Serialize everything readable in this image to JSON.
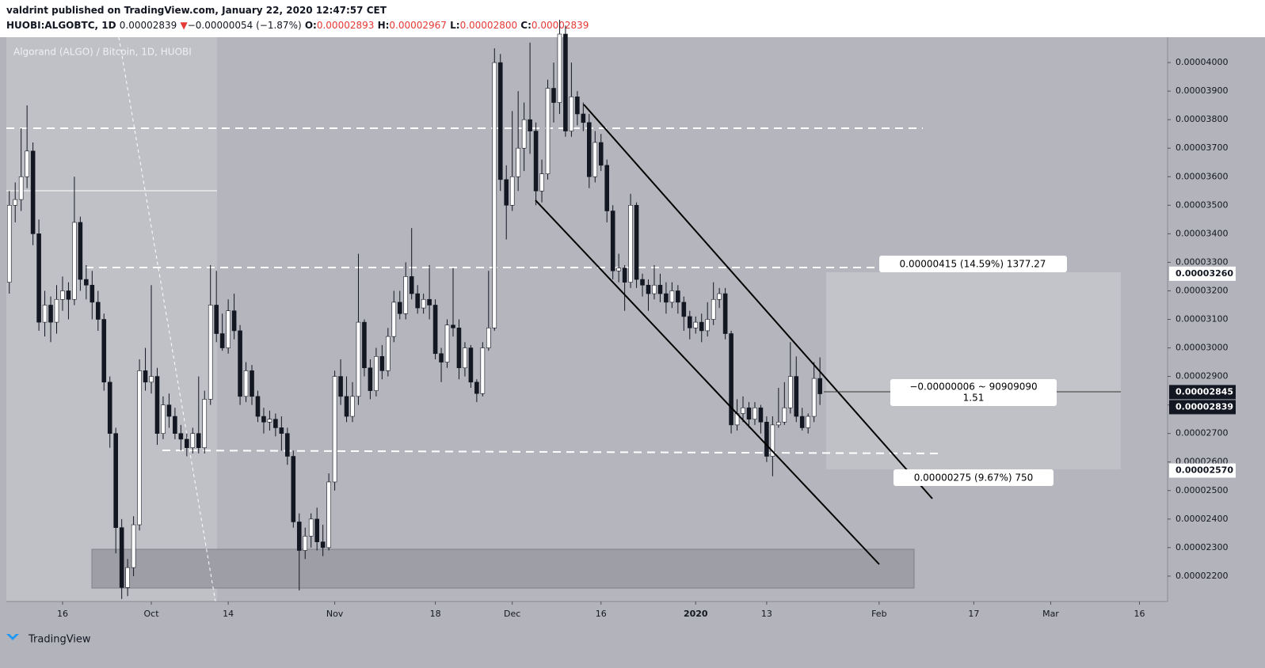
{
  "header": {
    "publisher": "valdrint published on TradingView.com, January 22, 2020 12:47:57 CET",
    "symbol": "HUOBI:ALGOBTC, 1D",
    "last": "0.00002839",
    "arrow": "▼",
    "change": "−0.00000054 (−1.87%)",
    "o_label": "O:",
    "o": "0.00002893",
    "h_label": "H:",
    "h": "0.00002967",
    "l_label": "L:",
    "l": "0.00002800",
    "c_label": "C:",
    "c": "0.00002839"
  },
  "chart_data": {
    "type": "candlestick",
    "title": "Algorand (ALGO) / Bitcoin, 1D, HUOBI",
    "up_color": "#ffffff",
    "down_color": "#131722",
    "candles": [
      [
        3.23e-05,
        3.55e-05,
        3.19e-05,
        3.5e-05
      ],
      [
        3.5e-05,
        3.58e-05,
        3.44e-05,
        3.52e-05
      ],
      [
        3.52e-05,
        3.77e-05,
        3.48e-05,
        3.6e-05
      ],
      [
        3.6e-05,
        3.85e-05,
        3.56e-05,
        3.69e-05
      ],
      [
        3.69e-05,
        3.72e-05,
        3.36e-05,
        3.4e-05
      ],
      [
        3.4e-05,
        3.45e-05,
        3.06e-05,
        3.09e-05
      ],
      [
        3.09e-05,
        3.2e-05,
        3.04e-05,
        3.15e-05
      ],
      [
        3.15e-05,
        3.18e-05,
        3.02e-05,
        3.09e-05
      ],
      [
        3.09e-05,
        3.22e-05,
        3.05e-05,
        3.17e-05
      ],
      [
        3.17e-05,
        3.25e-05,
        3.13e-05,
        3.2e-05
      ],
      [
        3.2e-05,
        3.23e-05,
        3.1e-05,
        3.17e-05
      ],
      [
        3.17e-05,
        3.6e-05,
        3.15e-05,
        3.44e-05
      ],
      [
        3.44e-05,
        3.46e-05,
        3.2e-05,
        3.24e-05
      ],
      [
        3.24e-05,
        3.29e-05,
        3.17e-05,
        3.22e-05
      ],
      [
        3.22e-05,
        3.27e-05,
        3.1e-05,
        3.16e-05
      ],
      [
        3.16e-05,
        3.2e-05,
        3.06e-05,
        3.1e-05
      ],
      [
        3.1e-05,
        3.12e-05,
        2.85e-05,
        2.88e-05
      ],
      [
        2.88e-05,
        2.9e-05,
        2.65e-05,
        2.7e-05
      ],
      [
        2.7e-05,
        2.72e-05,
        2.28e-05,
        2.37e-05
      ],
      [
        2.37e-05,
        2.4e-05,
        2.12e-05,
        2.16e-05
      ],
      [
        2.16e-05,
        2.26e-05,
        2.13e-05,
        2.23e-05
      ],
      [
        2.23e-05,
        2.41e-05,
        2.2e-05,
        2.38e-05
      ],
      [
        2.38e-05,
        2.96e-05,
        2.36e-05,
        2.92e-05
      ],
      [
        2.92e-05,
        3e-05,
        2.85e-05,
        2.88e-05
      ],
      [
        2.88e-05,
        3.22e-05,
        2.84e-05,
        2.9e-05
      ],
      [
        2.9e-05,
        2.93e-05,
        2.66e-05,
        2.7e-05
      ],
      [
        2.7e-05,
        2.83e-05,
        2.68e-05,
        2.8e-05
      ],
      [
        2.8e-05,
        2.84e-05,
        2.72e-05,
        2.76e-05
      ],
      [
        2.76e-05,
        2.79e-05,
        2.68e-05,
        2.7e-05
      ],
      [
        2.7e-05,
        2.73e-05,
        2.64e-05,
        2.68e-05
      ],
      [
        2.68e-05,
        2.7e-05,
        2.62e-05,
        2.65e-05
      ],
      [
        2.65e-05,
        2.72e-05,
        2.63e-05,
        2.7e-05
      ],
      [
        2.7e-05,
        2.9e-05,
        2.63e-05,
        2.65e-05
      ],
      [
        2.65e-05,
        2.85e-05,
        2.63e-05,
        2.82e-05
      ],
      [
        2.82e-05,
        3.29e-05,
        2.8e-05,
        3.15e-05
      ],
      [
        3.15e-05,
        3.27e-05,
        3.02e-05,
        3.05e-05
      ],
      [
        3.05e-05,
        3.12e-05,
        2.99e-05,
        3e-05
      ],
      [
        3e-05,
        3.17e-05,
        2.98e-05,
        3.13e-05
      ],
      [
        3.13e-05,
        3.19e-05,
        3.03e-05,
        3.06e-05
      ],
      [
        3.06e-05,
        3.08e-05,
        2.8e-05,
        2.83e-05
      ],
      [
        2.83e-05,
        2.95e-05,
        2.81e-05,
        2.92e-05
      ],
      [
        2.92e-05,
        2.94e-05,
        2.8e-05,
        2.83e-05
      ],
      [
        2.83e-05,
        2.85e-05,
        2.74e-05,
        2.76e-05
      ],
      [
        2.76e-05,
        2.79e-05,
        2.7e-05,
        2.74e-05
      ],
      [
        2.74e-05,
        2.78e-05,
        2.71e-05,
        2.75e-05
      ],
      [
        2.75e-05,
        2.77e-05,
        2.69e-05,
        2.72e-05
      ],
      [
        2.72e-05,
        2.76e-05,
        2.64e-05,
        2.7e-05
      ],
      [
        2.7e-05,
        2.72e-05,
        2.59e-05,
        2.62e-05
      ],
      [
        2.62e-05,
        2.64e-05,
        2.37e-05,
        2.39e-05
      ],
      [
        2.39e-05,
        2.42e-05,
        2.15e-05,
        2.29e-05
      ],
      [
        2.29e-05,
        2.37e-05,
        2.26e-05,
        2.34e-05
      ],
      [
        2.34e-05,
        2.42e-05,
        2.3e-05,
        2.4e-05
      ],
      [
        2.4e-05,
        2.44e-05,
        2.29e-05,
        2.32e-05
      ],
      [
        2.32e-05,
        2.38e-05,
        2.27e-05,
        2.3e-05
      ],
      [
        2.3e-05,
        2.56e-05,
        2.29e-05,
        2.53e-05
      ],
      [
        2.53e-05,
        2.92e-05,
        2.5e-05,
        2.9e-05
      ],
      [
        2.9e-05,
        2.96e-05,
        2.8e-05,
        2.83e-05
      ],
      [
        2.83e-05,
        2.9e-05,
        2.74e-05,
        2.76e-05
      ],
      [
        2.76e-05,
        2.88e-05,
        2.74e-05,
        2.83e-05
      ],
      [
        2.83e-05,
        3.33e-05,
        2.8e-05,
        3.09e-05
      ],
      [
        3.09e-05,
        3.1e-05,
        2.9e-05,
        2.93e-05
      ],
      [
        2.93e-05,
        2.96e-05,
        2.82e-05,
        2.85e-05
      ],
      [
        2.85e-05,
        3e-05,
        2.83e-05,
        2.97e-05
      ],
      [
        2.97e-05,
        3.01e-05,
        2.89e-05,
        2.92e-05
      ],
      [
        2.92e-05,
        3.07e-05,
        2.9e-05,
        3.04e-05
      ],
      [
        3.04e-05,
        3.2e-05,
        3.02e-05,
        3.16e-05
      ],
      [
        3.16e-05,
        3.2e-05,
        3.1e-05,
        3.12e-05
      ],
      [
        3.12e-05,
        3.3e-05,
        3.1e-05,
        3.25e-05
      ],
      [
        3.25e-05,
        3.42e-05,
        3.17e-05,
        3.19e-05
      ],
      [
        3.19e-05,
        3.22e-05,
        3.12e-05,
        3.14e-05
      ],
      [
        3.14e-05,
        3.19e-05,
        3.12e-05,
        3.17e-05
      ],
      [
        3.17e-05,
        3.29e-05,
        3.1e-05,
        3.15e-05
      ],
      [
        3.15e-05,
        3.17e-05,
        2.96e-05,
        2.98e-05
      ],
      [
        2.98e-05,
        3e-05,
        2.88e-05,
        2.95e-05
      ],
      [
        2.95e-05,
        3.1e-05,
        2.93e-05,
        3.08e-05
      ],
      [
        3.08e-05,
        3.28e-05,
        3.04e-05,
        3.07e-05
      ],
      [
        3.07e-05,
        3.1e-05,
        2.89e-05,
        2.93e-05
      ],
      [
        2.93e-05,
        3.02e-05,
        2.9e-05,
        3e-05
      ],
      [
        3e-05,
        3.01e-05,
        2.86e-05,
        2.88e-05
      ],
      [
        2.88e-05,
        2.89e-05,
        2.81e-05,
        2.84e-05
      ],
      [
        2.84e-05,
        3.02e-05,
        2.83e-05,
        3e-05
      ],
      [
        3e-05,
        3.27e-05,
        2.99e-05,
        3.07e-05
      ],
      [
        3.07e-05,
        4.05e-05,
        3.06e-05,
        4e-05
      ],
      [
        4e-05,
        4.03e-05,
        3.55e-05,
        3.59e-05
      ],
      [
        3.59e-05,
        3.64e-05,
        3.38e-05,
        3.5e-05
      ],
      [
        3.5e-05,
        3.83e-05,
        3.48e-05,
        3.6e-05
      ],
      [
        3.6e-05,
        3.9e-05,
        3.55e-05,
        3.7e-05
      ],
      [
        3.7e-05,
        3.86e-05,
        3.62e-05,
        3.8e-05
      ],
      [
        3.8e-05,
        4.07e-05,
        3.68e-05,
        3.76e-05
      ],
      [
        3.76e-05,
        3.79e-05,
        3.5e-05,
        3.55e-05
      ],
      [
        3.55e-05,
        3.66e-05,
        3.51e-05,
        3.61e-05
      ],
      [
        3.61e-05,
        3.94e-05,
        3.59e-05,
        3.91e-05
      ],
      [
        3.91e-05,
        4e-05,
        3.79e-05,
        3.86e-05
      ],
      [
        3.86e-05,
        4.15e-05,
        3.82e-05,
        4.1e-05
      ],
      [
        4.1e-05,
        4.13e-05,
        3.74e-05,
        3.76e-05
      ],
      [
        3.76e-05,
        4e-05,
        3.74e-05,
        3.88e-05
      ],
      [
        3.88e-05,
        3.9e-05,
        3.78e-05,
        3.82e-05
      ],
      [
        3.82e-05,
        3.86e-05,
        3.76e-05,
        3.79e-05
      ],
      [
        3.79e-05,
        3.82e-05,
        3.56e-05,
        3.6e-05
      ],
      [
        3.6e-05,
        3.76e-05,
        3.58e-05,
        3.72e-05
      ],
      [
        3.72e-05,
        3.75e-05,
        3.62e-05,
        3.64e-05
      ],
      [
        3.64e-05,
        3.66e-05,
        3.44e-05,
        3.48e-05
      ],
      [
        3.48e-05,
        3.5e-05,
        3.24e-05,
        3.27e-05
      ],
      [
        3.27e-05,
        3.33e-05,
        3.23e-05,
        3.28e-05
      ],
      [
        3.28e-05,
        3.29e-05,
        3.13e-05,
        3.23e-05
      ],
      [
        3.23e-05,
        3.54e-05,
        3.21e-05,
        3.5e-05
      ],
      [
        3.5e-05,
        3.51e-05,
        3.21e-05,
        3.24e-05
      ],
      [
        3.24e-05,
        3.26e-05,
        3.18e-05,
        3.22e-05
      ],
      [
        3.22e-05,
        3.24e-05,
        3.13e-05,
        3.19e-05
      ],
      [
        3.19e-05,
        3.29e-05,
        3.17e-05,
        3.22e-05
      ],
      [
        3.22e-05,
        3.26e-05,
        3.16e-05,
        3.19e-05
      ],
      [
        3.19e-05,
        3.23e-05,
        3.12e-05,
        3.16e-05
      ],
      [
        3.16e-05,
        3.23e-05,
        3.14e-05,
        3.2e-05
      ],
      [
        3.2e-05,
        3.22e-05,
        3.12e-05,
        3.16e-05
      ],
      [
        3.16e-05,
        3.18e-05,
        3.06e-05,
        3.11e-05
      ],
      [
        3.11e-05,
        3.13e-05,
        3.03e-05,
        3.07e-05
      ],
      [
        3.07e-05,
        3.11e-05,
        3.05e-05,
        3.09e-05
      ],
      [
        3.09e-05,
        3.12e-05,
        3.02e-05,
        3.06e-05
      ],
      [
        3.06e-05,
        3.16e-05,
        3.04e-05,
        3.1e-05
      ],
      [
        3.1e-05,
        3.23e-05,
        3.08e-05,
        3.17e-05
      ],
      [
        3.17e-05,
        3.21e-05,
        3.14e-05,
        3.19e-05
      ],
      [
        3.19e-05,
        3.21e-05,
        3.03e-05,
        3.05e-05
      ],
      [
        3.05e-05,
        3.06e-05,
        2.7e-05,
        2.73e-05
      ],
      [
        2.73e-05,
        2.82e-05,
        2.71e-05,
        2.77e-05
      ],
      [
        2.77e-05,
        2.83e-05,
        2.74e-05,
        2.79e-05
      ],
      [
        2.79e-05,
        2.81e-05,
        2.72e-05,
        2.75e-05
      ],
      [
        2.75e-05,
        2.81e-05,
        2.73e-05,
        2.79e-05
      ],
      [
        2.79e-05,
        2.8e-05,
        2.7e-05,
        2.74e-05
      ],
      [
        2.74e-05,
        2.76e-05,
        2.6e-05,
        2.62e-05
      ],
      [
        2.62e-05,
        2.76e-05,
        2.55e-05,
        2.73e-05
      ],
      [
        2.73e-05,
        2.86e-05,
        2.72e-05,
        2.74e-05
      ],
      [
        2.74e-05,
        2.88e-05,
        2.73e-05,
        2.79e-05
      ],
      [
        2.79e-05,
        3.02e-05,
        2.77e-05,
        2.9e-05
      ],
      [
        2.9e-05,
        2.97e-05,
        2.74e-05,
        2.76e-05
      ],
      [
        2.76e-05,
        2.79e-05,
        2.71e-05,
        2.72e-05
      ],
      [
        2.72e-05,
        2.77e-05,
        2.7e-05,
        2.76e-05
      ],
      [
        2.76e-05,
        2.95e-05,
        2.74e-05,
        2.893e-05
      ],
      [
        2.893e-05,
        2.967e-05,
        2.8e-05,
        2.839e-05
      ]
    ],
    "xlim": [
      -0.5,
      195.75
    ],
    "xticks": [
      {
        "value": 9,
        "label": "16"
      },
      {
        "value": 24,
        "label": "Oct"
      },
      {
        "value": 37,
        "label": "14"
      },
      {
        "value": 55,
        "label": "Nov"
      },
      {
        "value": 72,
        "label": "18"
      },
      {
        "value": 85,
        "label": "Dec"
      },
      {
        "value": 100,
        "label": "16"
      },
      {
        "value": 116,
        "label": "2020"
      },
      {
        "value": 128,
        "label": "13"
      },
      {
        "value": 147,
        "label": "Feb"
      },
      {
        "value": 163,
        "label": "17"
      },
      {
        "value": 176,
        "label": "Mar"
      },
      {
        "value": 191,
        "label": "16"
      }
    ],
    "ylim": [
      2.111e-05,
      4.089e-05
    ],
    "yticks": [
      {
        "value": 2.2e-05,
        "label": "0.00002200"
      },
      {
        "value": 2.3e-05,
        "label": "0.00002300"
      },
      {
        "value": 2.4e-05,
        "label": "0.00002400"
      },
      {
        "value": 2.5e-05,
        "label": "0.00002500"
      },
      {
        "value": 2.6e-05,
        "label": "0.00002600"
      },
      {
        "value": 2.7e-05,
        "label": "0.00002700"
      },
      {
        "value": 2.8e-05,
        "label": "0.00002800"
      },
      {
        "value": 2.9e-05,
        "label": "0.00002900"
      },
      {
        "value": 3e-05,
        "label": "0.00003000"
      },
      {
        "value": 3.1e-05,
        "label": "0.00003100"
      },
      {
        "value": 3.2e-05,
        "label": "0.00003200"
      },
      {
        "value": 3.3e-05,
        "label": "0.00003300"
      },
      {
        "value": 3.4e-05,
        "label": "0.00003400"
      },
      {
        "value": 3.5e-05,
        "label": "0.00003500"
      },
      {
        "value": 3.6e-05,
        "label": "0.00003600"
      },
      {
        "value": 3.7e-05,
        "label": "0.00003700"
      },
      {
        "value": 3.8e-05,
        "label": "0.00003800"
      },
      {
        "value": 3.9e-05,
        "label": "0.00003900"
      },
      {
        "value": 4e-05,
        "label": "0.00004000"
      }
    ],
    "price_labels": [
      {
        "value": 3.26e-05,
        "label": "0.00003260",
        "color": "#ffffff"
      },
      {
        "value": 2.845e-05,
        "label": "0.00002845",
        "color": "#131722"
      },
      {
        "value": 2.839e-05,
        "label": "0.00002839",
        "color": "#131722"
      },
      {
        "value": 2.57e-05,
        "label": "0.00002570",
        "color": "#ffffff"
      }
    ],
    "measure_labels": [
      "0.00000415 (14.59%) 1377.27",
      "−0.00000006 ~ 90909090",
      "1.51",
      "0.00000275 (9.67%) 750"
    ]
  },
  "footer": {
    "brand": "TradingView"
  }
}
